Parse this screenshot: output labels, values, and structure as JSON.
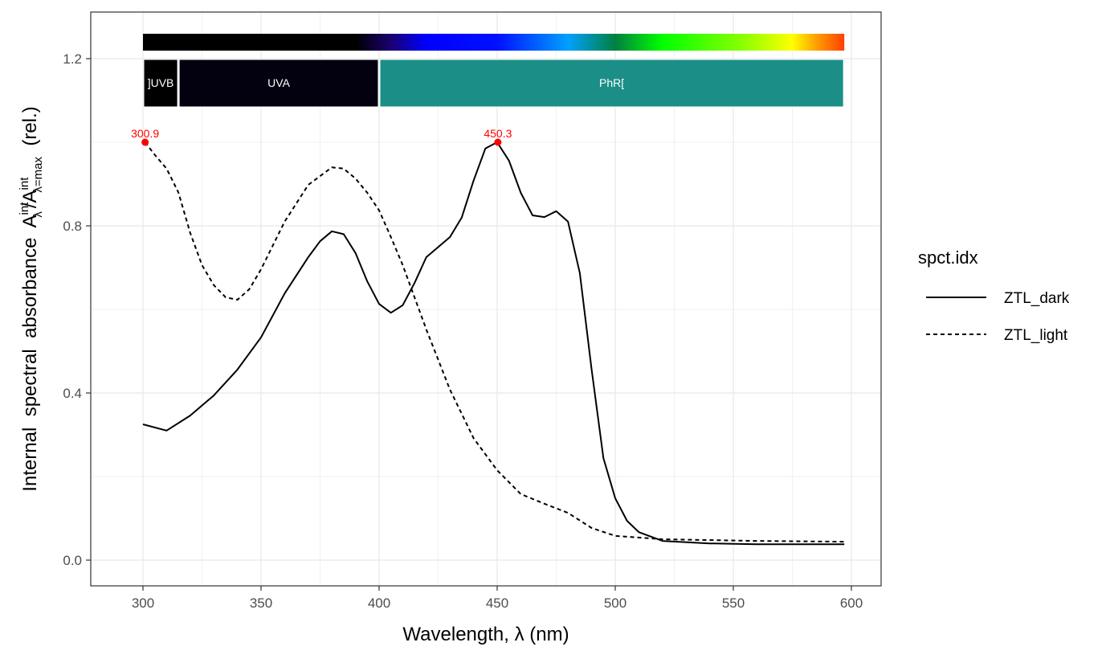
{
  "chart_data": {
    "type": "line",
    "title": "",
    "xlabel": "Wavelength, λ (nm)",
    "ylabel": {
      "prefix": "Internal  spectral  absorbance  ",
      "num": "A",
      "num_sup": "int",
      "num_sub": "λ",
      "slash": "/",
      "den": "A",
      "den_sup": "int",
      "den_sub": "λ=max",
      "suffix": "  (rel.)"
    },
    "xlim": [
      280,
      612
    ],
    "ylim": [
      -0.06,
      1.31
    ],
    "x_ticks": [
      300,
      350,
      400,
      450,
      500,
      550,
      600
    ],
    "x_tick_labels": [
      "300",
      "350",
      "400",
      "450",
      "500",
      "550",
      "600"
    ],
    "y_ticks": [
      0,
      0.4,
      0.8,
      1.2
    ],
    "y_tick_labels": [
      "0.0",
      "0.4",
      "0.8",
      "1.2"
    ],
    "grid": true,
    "legend": {
      "title": "spct.idx",
      "placement": "right"
    },
    "series": [
      {
        "name": "ZTL_dark",
        "linetype": "solid",
        "x": [
          300,
          310,
          320,
          330,
          340,
          350,
          360,
          370,
          375,
          380,
          385,
          390,
          395,
          400,
          405,
          410,
          415,
          420,
          430,
          435,
          440,
          445,
          450,
          455,
          460,
          465,
          470,
          475,
          480,
          485,
          490,
          495,
          500,
          505,
          510,
          520,
          540,
          560,
          597
        ],
        "y": [
          0.325,
          0.31,
          0.346,
          0.394,
          0.456,
          0.533,
          0.638,
          0.725,
          0.763,
          0.787,
          0.78,
          0.735,
          0.667,
          0.613,
          0.592,
          0.61,
          0.663,
          0.725,
          0.773,
          0.82,
          0.908,
          0.985,
          1.0,
          0.956,
          0.879,
          0.825,
          0.821,
          0.835,
          0.81,
          0.687,
          0.456,
          0.244,
          0.148,
          0.094,
          0.067,
          0.046,
          0.04,
          0.038,
          0.038
        ]
      },
      {
        "name": "ZTL_light",
        "linetype": "dashed",
        "x": [
          300.9,
          305,
          310,
          315,
          320,
          325,
          330,
          335,
          340,
          345,
          350,
          360,
          370,
          380,
          385,
          390,
          395,
          400,
          405,
          410,
          420,
          430,
          440,
          450,
          460,
          470,
          480,
          490,
          500,
          520,
          560,
          597
        ],
        "y": [
          1.0,
          0.97,
          0.937,
          0.88,
          0.783,
          0.706,
          0.658,
          0.629,
          0.623,
          0.648,
          0.696,
          0.81,
          0.898,
          0.94,
          0.937,
          0.913,
          0.879,
          0.837,
          0.773,
          0.706,
          0.552,
          0.408,
          0.292,
          0.215,
          0.158,
          0.135,
          0.113,
          0.077,
          0.058,
          0.05,
          0.046,
          0.044
        ]
      }
    ],
    "peaks": [
      {
        "x": 300.9,
        "y": 1.0,
        "label": "300.9"
      },
      {
        "x": 450.3,
        "y": 1.0,
        "label": "450.3"
      }
    ],
    "peak_color": "#ff0000",
    "wavebands": [
      {
        "label": "]UVB",
        "from": 300,
        "to": 315,
        "color": "#000000"
      },
      {
        "label": "UVA",
        "from": 315,
        "to": 400,
        "color": "#03000f"
      },
      {
        "label": "PhR[",
        "from": 400,
        "to": 597,
        "color": "#1b8f87"
      }
    ],
    "color_bar": {
      "from": 300,
      "to": 597,
      "stops": [
        {
          "nm": 300,
          "color": "#000000"
        },
        {
          "nm": 390,
          "color": "#000000"
        },
        {
          "nm": 405,
          "color": "#1a0070"
        },
        {
          "nm": 420,
          "color": "#0000ff"
        },
        {
          "nm": 450,
          "color": "#0010ff"
        },
        {
          "nm": 480,
          "color": "#00a0ff"
        },
        {
          "nm": 500,
          "color": "#008040"
        },
        {
          "nm": 520,
          "color": "#00ff00"
        },
        {
          "nm": 555,
          "color": "#90ff00"
        },
        {
          "nm": 575,
          "color": "#ffff00"
        },
        {
          "nm": 585,
          "color": "#ffa000"
        },
        {
          "nm": 597,
          "color": "#ff4000"
        }
      ]
    }
  }
}
